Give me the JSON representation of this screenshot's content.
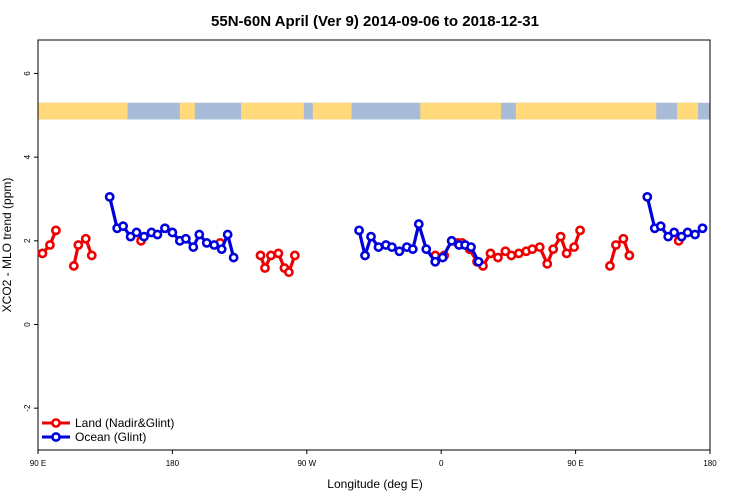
{
  "chart_data": {
    "type": "line",
    "title": "55N-60N April (Ver 9)   2014-09-06 to 2018-12-31",
    "xlabel": "Longitude (deg E)",
    "ylabel": "XCO2 - MLO trend (ppm)",
    "xlim": [
      90,
      540
    ],
    "ylim": [
      -3,
      6.8
    ],
    "x_ticks": [
      {
        "value": 90,
        "label": "90 E"
      },
      {
        "value": 180,
        "label": "180"
      },
      {
        "value": 270,
        "label": "90 W"
      },
      {
        "value": 360,
        "label": "0"
      },
      {
        "value": 450,
        "label": "90 E"
      },
      {
        "value": 540,
        "label": "180"
      }
    ],
    "y_ticks": [
      {
        "value": -2,
        "label": "-2"
      },
      {
        "value": 0,
        "label": "0"
      },
      {
        "value": 2,
        "label": "2"
      },
      {
        "value": 4,
        "label": "4"
      },
      {
        "value": 6,
        "label": "6"
      }
    ],
    "land_ocean_strip": {
      "y_top": 5.3,
      "y_bottom": 4.9,
      "land_color": "#ffd97a",
      "ocean_color": "#a8bcd8"
    },
    "legend_position": "bottom-left",
    "series": [
      {
        "name": "Land (Nadir&Glint)",
        "color": "#ee0000",
        "segments": [
          [
            [
              93,
              1.7
            ],
            [
              98,
              1.9
            ],
            [
              102,
              2.25
            ]
          ],
          [
            [
              114,
              1.4
            ],
            [
              117,
              1.9
            ],
            [
              122,
              2.05
            ],
            [
              126,
              1.65
            ]
          ],
          [
            [
              159,
              2.0
            ]
          ],
          [
            [
              212,
              1.95
            ]
          ],
          [
            [
              239,
              1.65
            ],
            [
              242,
              1.35
            ],
            [
              246,
              1.65
            ],
            [
              251,
              1.7
            ],
            [
              255,
              1.35
            ],
            [
              258,
              1.25
            ],
            [
              262,
              1.65
            ]
          ],
          [
            [
              356,
              1.65
            ],
            [
              362,
              1.65
            ]
          ],
          [
            [
              371,
              1.95
            ],
            [
              374,
              1.95
            ],
            [
              379,
              1.8
            ],
            [
              384,
              1.5
            ],
            [
              388,
              1.4
            ],
            [
              393,
              1.7
            ],
            [
              398,
              1.6
            ],
            [
              403,
              1.75
            ],
            [
              407,
              1.65
            ],
            [
              412,
              1.7
            ],
            [
              417,
              1.75
            ],
            [
              421,
              1.8
            ],
            [
              426,
              1.85
            ],
            [
              431,
              1.45
            ],
            [
              435,
              1.8
            ],
            [
              440,
              2.1
            ],
            [
              444,
              1.7
            ],
            [
              449,
              1.85
            ],
            [
              453,
              2.25
            ]
          ],
          [
            [
              473,
              1.4
            ],
            [
              477,
              1.9
            ],
            [
              482,
              2.05
            ],
            [
              486,
              1.65
            ]
          ],
          [
            [
              519,
              2.0
            ]
          ]
        ]
      },
      {
        "name": "Ocean (Glint)",
        "color": "#0000dd",
        "segments": [
          [
            [
              138,
              3.05
            ],
            [
              143,
              2.3
            ],
            [
              147,
              2.35
            ],
            [
              152,
              2.1
            ],
            [
              156,
              2.2
            ],
            [
              161,
              2.1
            ],
            [
              166,
              2.2
            ],
            [
              170,
              2.15
            ],
            [
              175,
              2.3
            ],
            [
              180,
              2.2
            ],
            [
              185,
              2.0
            ],
            [
              189,
              2.05
            ],
            [
              194,
              1.85
            ],
            [
              198,
              2.15
            ],
            [
              203,
              1.95
            ],
            [
              208,
              1.9
            ],
            [
              213,
              1.8
            ],
            [
              217,
              2.15
            ],
            [
              221,
              1.6
            ]
          ],
          [
            [
              305,
              2.25
            ],
            [
              309,
              1.65
            ],
            [
              313,
              2.1
            ],
            [
              318,
              1.85
            ],
            [
              323,
              1.9
            ],
            [
              327,
              1.85
            ],
            [
              332,
              1.75
            ],
            [
              337,
              1.85
            ],
            [
              341,
              1.8
            ],
            [
              345,
              2.4
            ],
            [
              350,
              1.8
            ],
            [
              356,
              1.5
            ],
            [
              361,
              1.6
            ],
            [
              367,
              2.0
            ],
            [
              372,
              1.9
            ],
            [
              376,
              1.9
            ],
            [
              380,
              1.85
            ],
            [
              385,
              1.5
            ]
          ],
          [
            [
              498,
              3.05
            ],
            [
              503,
              2.3
            ],
            [
              507,
              2.35
            ],
            [
              512,
              2.1
            ],
            [
              516,
              2.2
            ],
            [
              521,
              2.1
            ],
            [
              525,
              2.2
            ],
            [
              530,
              2.15
            ],
            [
              535,
              2.3
            ]
          ]
        ]
      }
    ]
  }
}
